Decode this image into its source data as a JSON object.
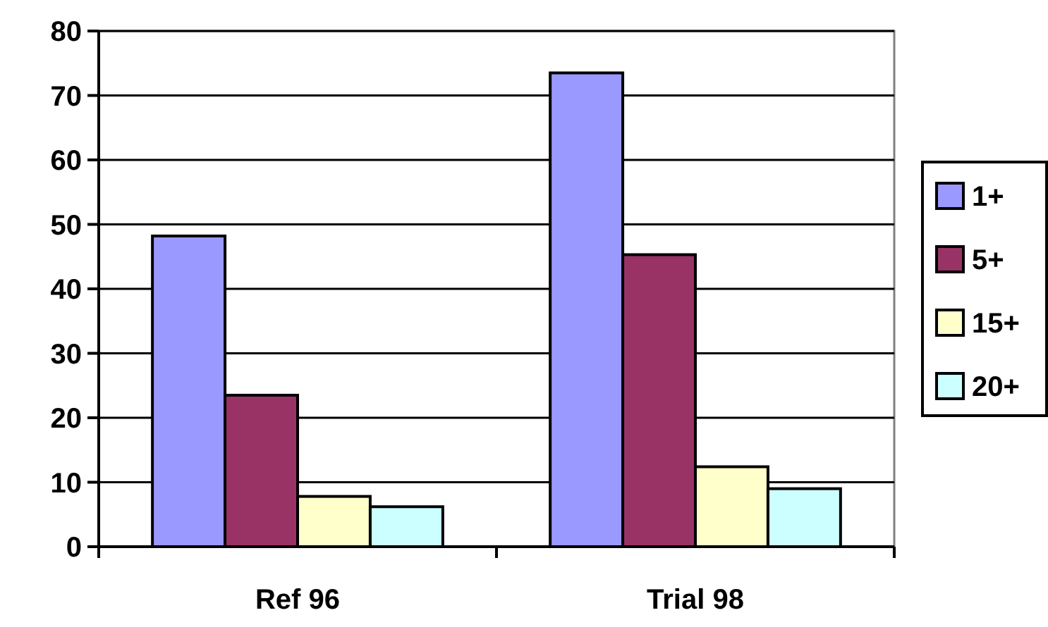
{
  "chart_data": {
    "type": "bar",
    "categories": [
      "Ref 96",
      "Trial 98"
    ],
    "series": [
      {
        "name": "1+",
        "color": "#9999ff",
        "values": [
          48.2,
          73.5
        ]
      },
      {
        "name": "5+",
        "color": "#993366",
        "values": [
          23.5,
          45.3
        ]
      },
      {
        "name": "15+",
        "color": "#ffffcc",
        "values": [
          7.8,
          12.4
        ]
      },
      {
        "name": "20+",
        "color": "#ccffff",
        "values": [
          6.2,
          9.0
        ]
      }
    ],
    "ylim": [
      0,
      80
    ],
    "yticks": [
      0,
      10,
      20,
      30,
      40,
      50,
      60,
      70,
      80
    ],
    "grid": "y",
    "legend": "right"
  }
}
